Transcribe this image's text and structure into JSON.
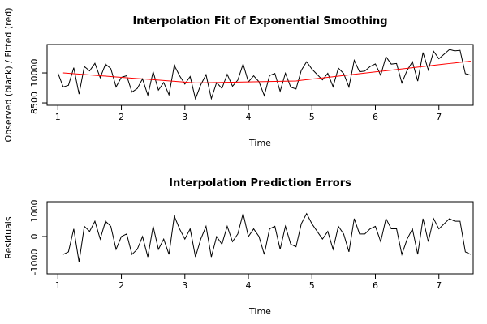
{
  "chart_data": [
    {
      "type": "line",
      "title": "Interpolation Fit of Exponential Smoothing",
      "x_label": "Time",
      "y_label": "Observed (black) / Fitted (red)",
      "x": [
        1,
        1.0833,
        1.1667,
        1.25,
        1.3333,
        1.4167,
        1.5,
        1.5833,
        1.6667,
        1.75,
        1.8333,
        1.9167,
        2,
        2.0833,
        2.1667,
        2.25,
        2.3333,
        2.4167,
        2.5,
        2.5833,
        2.6667,
        2.75,
        2.8333,
        2.9167,
        3,
        3.0833,
        3.1667,
        3.25,
        3.3333,
        3.4167,
        3.5,
        3.5833,
        3.6667,
        3.75,
        3.8333,
        3.9167,
        4,
        4.0833,
        4.1667,
        4.25,
        4.3333,
        4.4167,
        4.5,
        4.5833,
        4.6667,
        4.75,
        4.8333,
        4.9167,
        5,
        5.0833,
        5.1667,
        5.25,
        5.3333,
        5.4167,
        5.5,
        5.5833,
        5.6667,
        5.75,
        5.8333,
        5.9167,
        6,
        6.0833,
        6.1667,
        6.25,
        6.3333,
        6.4167,
        6.5,
        6.5833,
        6.6667,
        6.75,
        6.8333,
        6.9167,
        7,
        7.0833,
        7.1667,
        7.25,
        7.3333,
        7.4167,
        7.5
      ],
      "series": [
        {
          "color": "#000000",
          "values": [
            10000,
            9300,
            9380,
            10260,
            8940,
            10320,
            10100,
            10480,
            9760,
            10440,
            10220,
            9300,
            9780,
            9860,
            9040,
            9220,
            9700,
            8880,
            10060,
            9140,
            9520,
            8900,
            10380,
            9860,
            9440,
            9820,
            8700,
            9405,
            9910,
            8715,
            9520,
            9225,
            9930,
            9335,
            9640,
            10445,
            9550,
            9855,
            9560,
            8865,
            9870,
            9975,
            9080,
            9985,
            9290,
            9195,
            10130,
            10560,
            10190,
            9920,
            9650,
            9980,
            9310,
            10240,
            9970,
            9300,
            10630,
            10060,
            10090,
            10320,
            10450,
            9880,
            10810,
            10440,
            10470,
            9500,
            10130,
            10560,
            9590,
            11020,
            10150,
            11080,
            10710,
            10940,
            11170,
            11100,
            11130,
            9960,
            9890
          ]
        },
        {
          "color": "#ff0000",
          "values": [
            null,
            10000,
            9980,
            9960,
            9940,
            9920,
            9900,
            9880,
            9860,
            9840,
            9820,
            9800,
            9780,
            9760,
            9740,
            9720,
            9700,
            9680,
            9660,
            9640,
            9620,
            9600,
            9580,
            9560,
            9540,
            9520,
            9500,
            9505,
            9510,
            9515,
            9520,
            9525,
            9530,
            9535,
            9540,
            9545,
            9550,
            9555,
            9560,
            9565,
            9570,
            9575,
            9580,
            9585,
            9590,
            9595,
            9630,
            9660,
            9690,
            9720,
            9750,
            9780,
            9810,
            9840,
            9870,
            9900,
            9930,
            9960,
            9990,
            10020,
            10050,
            10080,
            10110,
            10140,
            10170,
            10200,
            10230,
            10260,
            10290,
            10320,
            10350,
            10380,
            10410,
            10440,
            10470,
            10500,
            10530,
            10560,
            10590
          ]
        }
      ],
      "xlim": [
        0.83,
        7.54
      ],
      "xticks": [
        1,
        2,
        3,
        4,
        5,
        6,
        7
      ],
      "ylim": [
        8380,
        11420
      ],
      "yticks": [
        8500,
        10000
      ]
    },
    {
      "type": "line",
      "title": "Interpolation Prediction Errors",
      "x_label": "Time",
      "y_label": "Residuals",
      "x": [
        1.0833,
        1.1667,
        1.25,
        1.3333,
        1.4167,
        1.5,
        1.5833,
        1.6667,
        1.75,
        1.8333,
        1.9167,
        2,
        2.0833,
        2.1667,
        2.25,
        2.3333,
        2.4167,
        2.5,
        2.5833,
        2.6667,
        2.75,
        2.8333,
        2.9167,
        3,
        3.0833,
        3.1667,
        3.25,
        3.3333,
        3.4167,
        3.5,
        3.5833,
        3.6667,
        3.75,
        3.8333,
        3.9167,
        4,
        4.0833,
        4.1667,
        4.25,
        4.3333,
        4.4167,
        4.5,
        4.5833,
        4.6667,
        4.75,
        4.8333,
        4.9167,
        5,
        5.0833,
        5.1667,
        5.25,
        5.3333,
        5.4167,
        5.5,
        5.5833,
        5.6667,
        5.75,
        5.8333,
        5.9167,
        6,
        6.0833,
        6.1667,
        6.25,
        6.3333,
        6.4167,
        6.5,
        6.5833,
        6.6667,
        6.75,
        6.8333,
        6.9167,
        7,
        7.0833,
        7.1667,
        7.25,
        7.3333,
        7.4167,
        7.5
      ],
      "series": [
        {
          "color": "#000000",
          "values": [
            -700,
            -600,
            300,
            -1000,
            400,
            200,
            600,
            -100,
            600,
            400,
            -500,
            0,
            100,
            -700,
            -500,
            0,
            -800,
            400,
            -500,
            -100,
            -700,
            800,
            300,
            -100,
            300,
            -800,
            -100,
            400,
            -800,
            0,
            -300,
            400,
            -200,
            100,
            900,
            0,
            300,
            0,
            -700,
            300,
            400,
            -500,
            400,
            -300,
            -400,
            500,
            900,
            500,
            200,
            -100,
            200,
            -500,
            400,
            100,
            -600,
            700,
            100,
            100,
            300,
            400,
            -200,
            700,
            300,
            300,
            -700,
            -100,
            300,
            -700,
            700,
            -200,
            700,
            300,
            500,
            700,
            600,
            600,
            -600,
            -700
          ]
        }
      ],
      "xlim": [
        0.83,
        7.54
      ],
      "xticks": [
        1,
        2,
        3,
        4,
        5,
        6,
        7
      ],
      "ylim": [
        -1460,
        1365
      ],
      "yticks": [
        -1000,
        0,
        1000
      ]
    }
  ]
}
